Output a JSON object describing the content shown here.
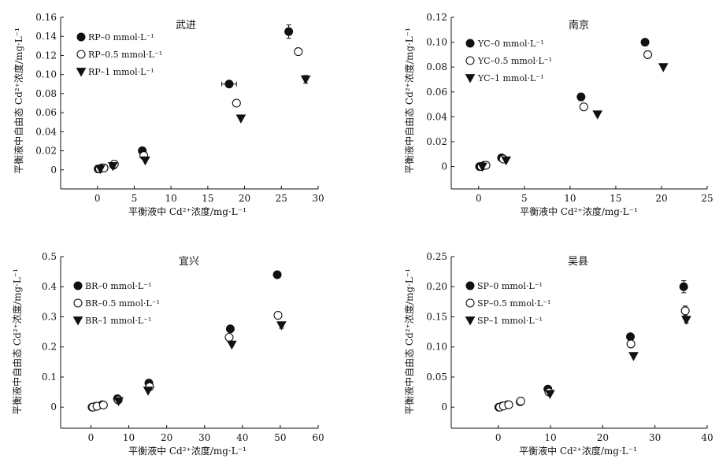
{
  "figure": {
    "panels": [
      {
        "title": "武进",
        "xlabel": "平衡液中 Cd²⁺浓度/mg·L⁻¹",
        "ylabel": "平衡液中自由态 Cd²⁺浓度/mg·L⁻¹",
        "legend": [
          "RP–0 mmol·L⁻¹",
          "RP–0.5 mmol·L⁻¹",
          "RP–1 mmol·L⁻¹"
        ]
      },
      {
        "title": "南京",
        "xlabel": "平衡液中 Cd²⁺浓度/mg·L⁻¹",
        "ylabel": "平衡液中自由态 Cd²⁺浓度/mg·L⁻¹",
        "legend": [
          "YC–0 mmol·L⁻¹",
          "YC–0.5 mmol·L⁻¹",
          "YC–1 mmol·L⁻¹"
        ]
      },
      {
        "title": "宜兴",
        "xlabel": "平衡液中 Cd²⁺浓度/mg·L⁻¹",
        "ylabel": "平衡液中自由态 Cd²⁺浓度/mg·L⁻¹",
        "legend": [
          "BR–0 mmol·L⁻¹",
          "BR–0.5 mmol·L⁻¹",
          "BR–1 mmol·L⁻¹"
        ]
      },
      {
        "title": "吴县",
        "xlabel": "平衡液中 Cd²⁺浓度/mg·L⁻¹",
        "ylabel": "平衡液中自由态 Cd²⁺浓度/mg·L⁻¹",
        "legend": [
          "SP–0 mmol·L⁻¹",
          "SP–0.5 mmol·L⁻¹",
          "SP–1 mmol·L⁻¹"
        ]
      }
    ]
  },
  "chart_data": [
    {
      "type": "scatter",
      "title": "武进",
      "xlabel": "平衡液中 Cd²⁺浓度/mg·L⁻¹",
      "ylabel": "平衡液中自由态 Cd²⁺浓度/mg·L⁻¹",
      "xlim": [
        -5,
        30
      ],
      "ylim": [
        -0.02,
        0.16
      ],
      "xticks": [
        0,
        5,
        10,
        15,
        20,
        25,
        30
      ],
      "yticks": [
        0,
        0.02,
        0.04,
        0.06,
        0.08,
        0.1,
        0.12,
        0.14,
        0.16
      ],
      "ytick_labels": [
        "0",
        "0.02",
        "0.04",
        "0.06",
        "0.08",
        "0.10",
        "0.12",
        "0.14",
        "0.16"
      ],
      "legend_position": "top-left",
      "series": [
        {
          "name": "RP–0 mmol·L⁻¹",
          "marker": "filled-circle",
          "points": [
            [
              0.1,
              0.001
            ],
            [
              0.6,
              0.002
            ],
            [
              2.2,
              0.005
            ],
            [
              6.1,
              0.02
            ],
            [
              17.9,
              0.09
            ],
            [
              26.0,
              0.145
            ]
          ],
          "xerr": [
            0,
            0,
            0,
            0,
            1.0,
            0
          ],
          "yerr": [
            0,
            0,
            0,
            0,
            0,
            0.007
          ]
        },
        {
          "name": "RP–0.5 mmol·L⁻¹",
          "marker": "open-circle",
          "points": [
            [
              0.3,
              0.001
            ],
            [
              0.9,
              0.002
            ],
            [
              2.3,
              0.006
            ],
            [
              6.3,
              0.015
            ],
            [
              18.9,
              0.07
            ],
            [
              27.3,
              0.124
            ]
          ],
          "xerr": [
            0,
            0,
            0,
            0,
            0,
            0
          ],
          "yerr": [
            0,
            0,
            0,
            0,
            0,
            0
          ]
        },
        {
          "name": "RP–1 mmol·L⁻¹",
          "marker": "filled-triangle-down",
          "points": [
            [
              0.4,
              0.001
            ],
            [
              2.1,
              0.004
            ],
            [
              6.5,
              0.01
            ],
            [
              19.5,
              0.054
            ],
            [
              28.3,
              0.095
            ]
          ],
          "xerr": [
            0,
            0,
            0,
            0,
            0
          ],
          "yerr": [
            0,
            0,
            0,
            0,
            0.004
          ]
        }
      ]
    },
    {
      "type": "scatter",
      "title": "南京",
      "xlabel": "平衡液中 Cd²⁺浓度/mg·L⁻¹",
      "ylabel": "平衡液中自由态 Cd²⁺浓度/mg·L⁻¹",
      "xlim": [
        -3,
        25
      ],
      "ylim": [
        -0.018,
        0.12
      ],
      "xticks": [
        0,
        5,
        10,
        15,
        20,
        25
      ],
      "yticks": [
        0,
        0.02,
        0.04,
        0.06,
        0.08,
        0.1,
        0.12
      ],
      "ytick_labels": [
        "0",
        "0.02",
        "0.04",
        "0.06",
        "0.08",
        "0.10",
        "0.12"
      ],
      "legend_position": "top-left",
      "series": [
        {
          "name": "YC–0 mmol·L⁻¹",
          "marker": "filled-circle",
          "points": [
            [
              0.1,
              0.0
            ],
            [
              0.6,
              0.001
            ],
            [
              2.5,
              0.007
            ],
            [
              11.2,
              0.056
            ],
            [
              18.2,
              0.1
            ]
          ],
          "xerr": [
            0,
            0,
            0,
            0,
            0
          ],
          "yerr": [
            0,
            0,
            0,
            0.003,
            0
          ]
        },
        {
          "name": "YC–0.5 mmol·L⁻¹",
          "marker": "open-circle",
          "points": [
            [
              0.3,
              0.0
            ],
            [
              0.8,
              0.001
            ],
            [
              2.7,
              0.006
            ],
            [
              11.5,
              0.048
            ],
            [
              18.5,
              0.09
            ]
          ],
          "xerr": [
            0,
            0,
            0,
            0,
            0
          ],
          "yerr": [
            0,
            0,
            0,
            0,
            0
          ]
        },
        {
          "name": "YC–1 mmol·L⁻¹",
          "marker": "filled-triangle-down",
          "points": [
            [
              0.4,
              0.0
            ],
            [
              3.0,
              0.005
            ],
            [
              13.0,
              0.042
            ],
            [
              20.2,
              0.08
            ]
          ],
          "xerr": [
            0,
            0,
            0,
            0
          ],
          "yerr": [
            0,
            0,
            0,
            0
          ]
        }
      ]
    },
    {
      "type": "scatter",
      "title": "宜兴",
      "xlabel": "平衡液中 Cd²⁺浓度/mg·L⁻¹",
      "ylabel": "平衡液中自由态 Cd²⁺浓度/mg·L⁻¹",
      "xlim": [
        -8,
        60
      ],
      "ylim": [
        -0.07,
        0.5
      ],
      "xticks": [
        0,
        10,
        20,
        30,
        40,
        50,
        60
      ],
      "yticks": [
        0,
        0.1,
        0.2,
        0.3,
        0.4,
        0.5
      ],
      "ytick_labels": [
        "0",
        "0.1",
        "0.2",
        "0.3",
        "0.4",
        "0.5"
      ],
      "legend_position": "top-left",
      "series": [
        {
          "name": "BR–0 mmol·L⁻¹",
          "marker": "filled-circle",
          "points": [
            [
              0.3,
              0.0
            ],
            [
              1.3,
              0.003
            ],
            [
              3.0,
              0.008
            ],
            [
              7.0,
              0.028
            ],
            [
              15.3,
              0.08
            ],
            [
              36.8,
              0.26
            ],
            [
              49.2,
              0.44
            ]
          ],
          "xerr": [
            0,
            0,
            0,
            0,
            0,
            0,
            0
          ],
          "yerr": [
            0,
            0,
            0,
            0,
            0,
            0,
            0
          ]
        },
        {
          "name": "BR–0.5 mmol·L⁻¹",
          "marker": "open-circle",
          "points": [
            [
              0.5,
              0.0
            ],
            [
              1.6,
              0.003
            ],
            [
              3.3,
              0.007
            ],
            [
              7.2,
              0.024
            ],
            [
              15.5,
              0.068
            ],
            [
              36.5,
              0.232
            ],
            [
              49.4,
              0.305
            ]
          ],
          "xerr": [
            0,
            0,
            0,
            0,
            0,
            0,
            0
          ],
          "yerr": [
            0,
            0,
            0,
            0,
            0,
            0,
            0.01
          ]
        },
        {
          "name": "BR–1 mmol·L⁻¹",
          "marker": "filled-triangle-down",
          "points": [
            [
              7.3,
              0.02
            ],
            [
              15.1,
              0.055
            ],
            [
              37.2,
              0.208
            ],
            [
              50.3,
              0.272
            ]
          ],
          "xerr": [
            0,
            0,
            0,
            0
          ],
          "yerr": [
            0,
            0,
            0,
            0.01
          ]
        }
      ]
    },
    {
      "type": "scatter",
      "title": "吴县",
      "xlabel": "平衡液中 Cd²⁺浓度/mg·L⁻¹",
      "ylabel": "平衡液中自由态 Cd²⁺浓度/mg·L⁻¹",
      "xlim": [
        -9,
        40
      ],
      "ylim": [
        -0.035,
        0.25
      ],
      "xticks": [
        0,
        10,
        20,
        30,
        40
      ],
      "yticks": [
        0,
        0.05,
        0.1,
        0.15,
        0.2,
        0.25
      ],
      "ytick_labels": [
        "0",
        "0.05",
        "0.10",
        "0.15",
        "0.20",
        "0.25"
      ],
      "legend_position": "top-left",
      "series": [
        {
          "name": "SP–0 mmol·L⁻¹",
          "marker": "filled-circle",
          "points": [
            [
              0.1,
              0.0
            ],
            [
              0.8,
              0.002
            ],
            [
              1.8,
              0.004
            ],
            [
              4.2,
              0.009
            ],
            [
              9.5,
              0.03
            ],
            [
              25.3,
              0.117
            ],
            [
              35.5,
              0.2
            ]
          ],
          "xerr": [
            0,
            0,
            0,
            0,
            0,
            0,
            0
          ],
          "yerr": [
            0,
            0,
            0,
            0,
            0,
            0,
            0.01
          ]
        },
        {
          "name": "SP–0.5 mmol·L⁻¹",
          "marker": "open-circle",
          "points": [
            [
              0.3,
              0.0
            ],
            [
              1.0,
              0.002
            ],
            [
              2.0,
              0.004
            ],
            [
              4.3,
              0.01
            ],
            [
              9.7,
              0.025
            ],
            [
              25.4,
              0.105
            ],
            [
              35.8,
              0.16
            ]
          ],
          "xerr": [
            0,
            0,
            0,
            0,
            0,
            0,
            0
          ],
          "yerr": [
            0,
            0,
            0,
            0,
            0,
            0,
            0.008
          ]
        },
        {
          "name": "SP–1 mmol·L⁻¹",
          "marker": "filled-triangle-down",
          "points": [
            [
              9.9,
              0.022
            ],
            [
              25.9,
              0.085
            ],
            [
              36.0,
              0.145
            ]
          ],
          "xerr": [
            0,
            0,
            0
          ],
          "yerr": [
            0,
            0,
            0.005
          ]
        }
      ]
    }
  ]
}
